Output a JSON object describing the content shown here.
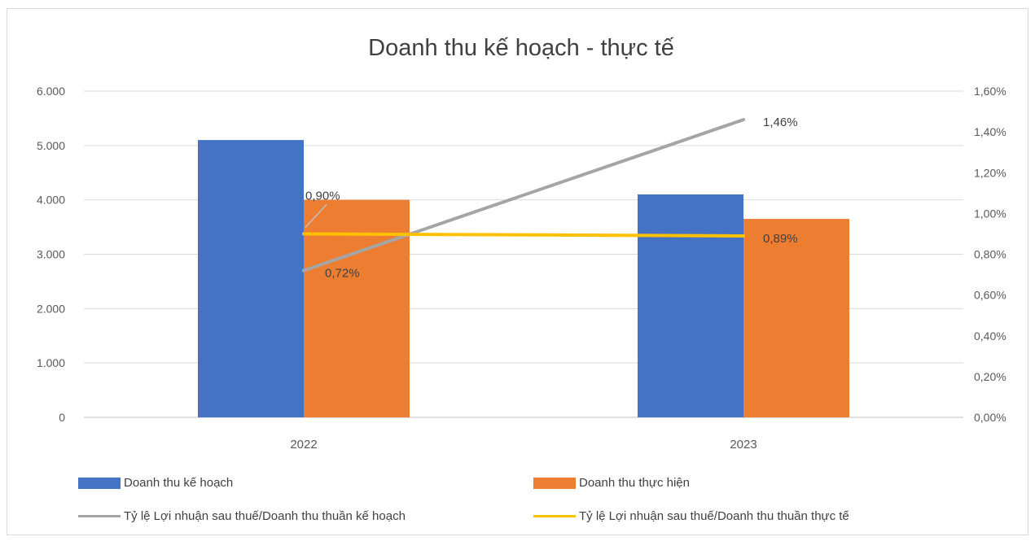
{
  "chart_data": {
    "type": "bar",
    "title": "Doanh thu kế hoạch - thực tế",
    "categories": [
      "2022",
      "2023"
    ],
    "y_left": {
      "ylim": [
        0,
        6000
      ],
      "ticks": [
        0,
        1000,
        2000,
        3000,
        4000,
        5000,
        6000
      ],
      "tick_labels": [
        "0",
        "1.000",
        "2.000",
        "3.000",
        "4.000",
        "5.000",
        "6.000"
      ]
    },
    "y_right": {
      "ylim": [
        0,
        1.6
      ],
      "ticks": [
        0,
        0.2,
        0.4,
        0.6,
        0.8,
        1.0,
        1.2,
        1.4,
        1.6
      ],
      "tick_labels": [
        "0,00%",
        "0,20%",
        "0,40%",
        "0,60%",
        "0,80%",
        "1,00%",
        "1,20%",
        "1,40%",
        "1,60%"
      ]
    },
    "grid": true,
    "legend_position": "bottom",
    "series": [
      {
        "name": "Doanh thu kế hoạch",
        "kind": "bar",
        "axis": "left",
        "color": "#4472c4",
        "values": [
          5100,
          4100
        ]
      },
      {
        "name": "Doanh thu thực hiện",
        "kind": "bar",
        "axis": "left",
        "color": "#ed7d31",
        "values": [
          4000,
          3650
        ]
      },
      {
        "name": "Tỷ lệ Lợi nhuận sau thuế/Doanh thu thuần kế hoạch",
        "kind": "line",
        "axis": "right",
        "color": "#a5a5a5",
        "values": [
          0.72,
          1.46
        ],
        "labels": [
          "0,72%",
          "1,46%"
        ]
      },
      {
        "name": "Tỷ lệ Lợi nhuận sau thuế/Doanh thu thuần thực tế",
        "kind": "line",
        "axis": "right",
        "color": "#ffc000",
        "values": [
          0.9,
          0.89
        ],
        "labels": [
          "0,90%",
          "0,89%"
        ]
      }
    ]
  }
}
